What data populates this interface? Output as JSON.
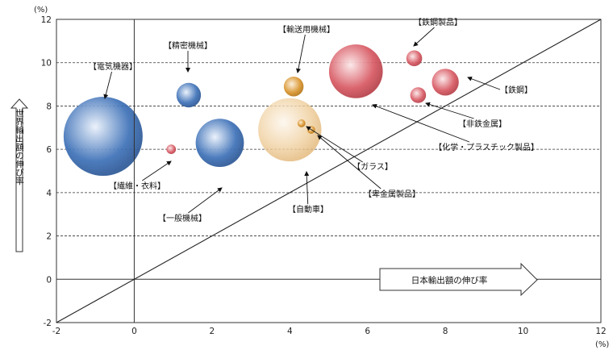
{
  "chart_data": {
    "type": "bubble",
    "title": "",
    "xlabel": "日本輸出額の伸び率",
    "ylabel": "世界輸出額の伸び率",
    "x_unit": "(%)",
    "y_unit": "(%)",
    "xlim": [
      -2,
      12
    ],
    "ylim": [
      -2,
      12
    ],
    "xticks": [
      "-2",
      "0",
      "2",
      "4",
      "6",
      "8",
      "10",
      "12"
    ],
    "yticks": [
      "-2",
      "0",
      "2",
      "4",
      "6",
      "8",
      "10",
      "12"
    ],
    "grid": "horizontal-dashed",
    "reference_line": "y = x",
    "colors": {
      "blue": "#3f72b8",
      "red": "#d85a64",
      "orange": "#d9952e",
      "beige": "#efcf9e"
    },
    "points": [
      {
        "name": "【電気機器】",
        "x": -0.8,
        "y": 6.6,
        "color": "blue",
        "size": 1.0
      },
      {
        "name": "【精密機械】",
        "x": 1.4,
        "y": 8.5,
        "color": "blue",
        "size": 0.31
      },
      {
        "name": "【一般機械】",
        "x": 2.2,
        "y": 6.3,
        "color": "blue",
        "size": 0.61
      },
      {
        "name": "【繊維・衣料】",
        "x": 0.95,
        "y": 6.0,
        "color": "red",
        "size": 0.12
      },
      {
        "name": "【自動車】",
        "x": 4.0,
        "y": 6.9,
        "color": "beige",
        "size": 0.8
      },
      {
        "name": "【輸送用機械】",
        "x": 4.1,
        "y": 8.9,
        "color": "orange",
        "size": 0.25
      },
      {
        "name": "【ガラス】",
        "x": 4.3,
        "y": 7.2,
        "color": "orange",
        "size": 0.1
      },
      {
        "name": "【卑金属製品】",
        "x": 4.55,
        "y": 6.9,
        "color": "orange",
        "size": 0.1
      },
      {
        "name": "【化学・プラスチック製品】",
        "x": 5.7,
        "y": 9.6,
        "color": "red",
        "size": 0.68
      },
      {
        "name": "【鉄鋼製品】",
        "x": 7.2,
        "y": 10.2,
        "color": "red",
        "size": 0.2
      },
      {
        "name": "【鉄鋼】",
        "x": 8.0,
        "y": 9.1,
        "color": "red",
        "size": 0.34
      },
      {
        "name": "【非鉄金属】",
        "x": 7.3,
        "y": 8.5,
        "color": "red",
        "size": 0.2
      }
    ]
  }
}
